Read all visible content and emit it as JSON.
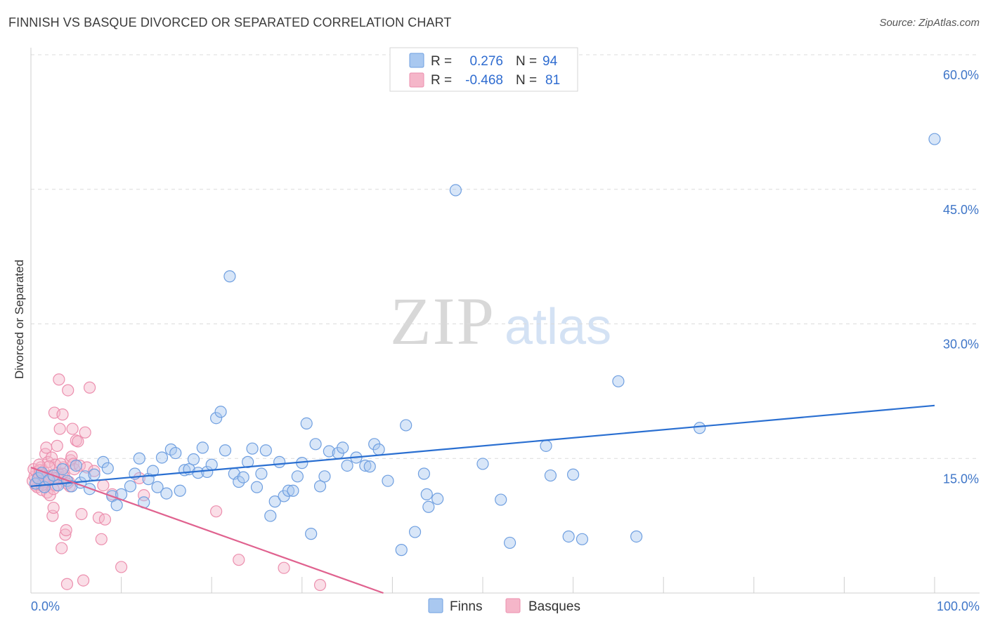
{
  "title": "FINNISH VS BASQUE DIVORCED OR SEPARATED CORRELATION CHART",
  "source": "Source: ZipAtlas.com",
  "watermark": {
    "zip": "ZIP",
    "atlas": "atlas"
  },
  "colors": {
    "finns_fill": "#a9c8f0",
    "finns_stroke": "#6f9fe0",
    "finns_line": "#2a6fd1",
    "basques_fill": "#f5b6c9",
    "basques_stroke": "#ec8fae",
    "basques_line": "#e0628f",
    "axis_text": "#3f76c8",
    "grid": "#dcdcdc"
  },
  "legend": {
    "rows": [
      {
        "r_label": "R =",
        "r_value": "0.276",
        "n_label": "N =",
        "n_value": "94"
      },
      {
        "r_label": "R =",
        "r_value": "-0.468",
        "n_label": "N =",
        "n_value": "81"
      }
    ]
  },
  "chart_data": {
    "type": "scatter",
    "title": "FINNISH VS BASQUE DIVORCED OR SEPARATED CORRELATION CHART",
    "xlabel": "",
    "ylabel": "Divorced or Separated",
    "xlim": [
      0,
      100
    ],
    "ylim": [
      0,
      60
    ],
    "x_tick_labels": [
      "0.0%",
      "100.0%"
    ],
    "y_ticks": [
      15,
      30,
      45,
      60
    ],
    "y_tick_labels": [
      "15.0%",
      "30.0%",
      "45.0%",
      "60.0%"
    ],
    "legend_position": "bottom-center",
    "series": [
      {
        "name": "Finns",
        "r": 0.276,
        "n": 94,
        "trend": {
          "x": [
            0,
            100
          ],
          "y": [
            11.9,
            20.9
          ]
        },
        "points": [
          [
            0.5,
            12.2
          ],
          [
            0.8,
            12.8
          ],
          [
            1.2,
            13.4
          ],
          [
            1.5,
            11.8
          ],
          [
            2,
            12.6
          ],
          [
            2.5,
            13.1
          ],
          [
            3,
            12.0
          ],
          [
            3.5,
            13.8
          ],
          [
            4,
            12.5
          ],
          [
            4.5,
            11.9
          ],
          [
            5,
            14.2
          ],
          [
            5.5,
            12.3
          ],
          [
            6,
            13.0
          ],
          [
            6.5,
            11.6
          ],
          [
            7,
            13.2
          ],
          [
            8,
            14.6
          ],
          [
            8.5,
            13.9
          ],
          [
            9,
            10.8
          ],
          [
            9.5,
            9.8
          ],
          [
            10,
            11.0
          ],
          [
            11,
            11.9
          ],
          [
            11.5,
            13.3
          ],
          [
            12,
            15.0
          ],
          [
            12.5,
            10.1
          ],
          [
            13,
            12.7
          ],
          [
            13.5,
            13.6
          ],
          [
            14,
            11.8
          ],
          [
            14.5,
            15.1
          ],
          [
            15,
            11.1
          ],
          [
            15.5,
            16.0
          ],
          [
            16,
            15.6
          ],
          [
            16.5,
            11.4
          ],
          [
            17,
            13.7
          ],
          [
            17.5,
            13.8
          ],
          [
            18,
            14.9
          ],
          [
            18.5,
            13.4
          ],
          [
            19,
            16.2
          ],
          [
            19.5,
            13.5
          ],
          [
            20,
            14.3
          ],
          [
            20.5,
            19.5
          ],
          [
            21,
            20.2
          ],
          [
            21.5,
            15.9
          ],
          [
            22,
            35.3
          ],
          [
            22.5,
            13.3
          ],
          [
            23,
            12.4
          ],
          [
            23.5,
            12.9
          ],
          [
            24,
            14.6
          ],
          [
            24.5,
            16.1
          ],
          [
            25,
            11.8
          ],
          [
            25.5,
            13.3
          ],
          [
            26,
            15.9
          ],
          [
            26.5,
            8.6
          ],
          [
            27,
            10.2
          ],
          [
            27.5,
            14.6
          ],
          [
            28,
            10.8
          ],
          [
            28.5,
            11.4
          ],
          [
            29,
            11.4
          ],
          [
            29.5,
            13.0
          ],
          [
            30,
            14.5
          ],
          [
            30.5,
            18.9
          ],
          [
            31,
            6.6
          ],
          [
            31.5,
            16.6
          ],
          [
            32,
            11.9
          ],
          [
            32.5,
            13.0
          ],
          [
            33,
            15.8
          ],
          [
            34,
            15.6
          ],
          [
            34.5,
            16.2
          ],
          [
            35,
            14.2
          ],
          [
            36,
            15.1
          ],
          [
            37,
            14.2
          ],
          [
            37.5,
            14.1
          ],
          [
            38,
            16.6
          ],
          [
            38.5,
            16.0
          ],
          [
            39.5,
            12.5
          ],
          [
            41,
            4.8
          ],
          [
            41.5,
            18.7
          ],
          [
            42.5,
            6.8
          ],
          [
            43.5,
            13.3
          ],
          [
            43.8,
            11.0
          ],
          [
            44,
            9.6
          ],
          [
            45,
            10.5
          ],
          [
            47,
            44.9
          ],
          [
            50,
            14.4
          ],
          [
            52,
            10.4
          ],
          [
            53,
            5.6
          ],
          [
            57,
            16.4
          ],
          [
            57.5,
            13.1
          ],
          [
            59.5,
            6.3
          ],
          [
            61,
            6.0
          ],
          [
            65,
            23.6
          ],
          [
            67,
            6.3
          ],
          [
            74,
            18.4
          ],
          [
            100,
            50.6
          ],
          [
            60,
            13.2
          ]
        ]
      },
      {
        "name": "Basques",
        "r": -0.468,
        "n": 81,
        "trend": {
          "x": [
            0,
            39
          ],
          "y": [
            14.0,
            0
          ]
        },
        "points": [
          [
            0.2,
            12.5
          ],
          [
            0.4,
            13.0
          ],
          [
            0.5,
            12.0
          ],
          [
            0.6,
            13.5
          ],
          [
            0.7,
            11.8
          ],
          [
            0.8,
            12.8
          ],
          [
            0.9,
            13.2
          ],
          [
            1.0,
            12.3
          ],
          [
            1.1,
            14.0
          ],
          [
            1.2,
            11.5
          ],
          [
            1.3,
            12.9
          ],
          [
            1.4,
            13.6
          ],
          [
            1.5,
            12.1
          ],
          [
            1.6,
            15.5
          ],
          [
            1.7,
            16.2
          ],
          [
            1.8,
            11.2
          ],
          [
            1.9,
            14.6
          ],
          [
            2.0,
            12.6
          ],
          [
            2.1,
            10.9
          ],
          [
            2.2,
            13.1
          ],
          [
            2.3,
            15.1
          ],
          [
            2.4,
            8.6
          ],
          [
            2.5,
            9.5
          ],
          [
            2.6,
            20.1
          ],
          [
            2.7,
            14.3
          ],
          [
            2.8,
            12.0
          ],
          [
            2.9,
            16.4
          ],
          [
            3.0,
            13.4
          ],
          [
            3.1,
            23.8
          ],
          [
            3.2,
            18.3
          ],
          [
            3.3,
            12.7
          ],
          [
            3.4,
            5.0
          ],
          [
            3.5,
            19.9
          ],
          [
            3.6,
            14.0
          ],
          [
            3.7,
            13.0
          ],
          [
            3.8,
            6.5
          ],
          [
            3.9,
            7.0
          ],
          [
            4.0,
            1.0
          ],
          [
            4.1,
            22.6
          ],
          [
            4.2,
            12.4
          ],
          [
            4.3,
            11.9
          ],
          [
            4.4,
            14.8
          ],
          [
            4.5,
            15.2
          ],
          [
            4.6,
            18.3
          ],
          [
            4.7,
            14.4
          ],
          [
            4.8,
            13.8
          ],
          [
            5.0,
            17.0
          ],
          [
            5.2,
            16.9
          ],
          [
            5.4,
            14.2
          ],
          [
            5.6,
            8.8
          ],
          [
            5.8,
            1.4
          ],
          [
            6.0,
            17.9
          ],
          [
            6.2,
            14.0
          ],
          [
            6.5,
            22.9
          ],
          [
            7.0,
            13.6
          ],
          [
            7.5,
            8.4
          ],
          [
            7.8,
            6.0
          ],
          [
            8.0,
            12.0
          ],
          [
            8.2,
            8.2
          ],
          [
            9.0,
            11.0
          ],
          [
            10.0,
            2.9
          ],
          [
            12.0,
            12.8
          ],
          [
            12.5,
            10.9
          ],
          [
            20.5,
            9.1
          ],
          [
            23.0,
            3.7
          ],
          [
            28.0,
            2.8
          ],
          [
            32.0,
            0.9
          ],
          [
            0.3,
            13.8
          ],
          [
            0.6,
            12.2
          ],
          [
            1.0,
            13.7
          ],
          [
            1.5,
            12.4
          ],
          [
            2.0,
            14.1
          ],
          [
            2.5,
            11.6
          ],
          [
            3.0,
            12.9
          ],
          [
            3.5,
            13.3
          ],
          [
            4.0,
            12.2
          ],
          [
            1.2,
            12.0
          ],
          [
            0.9,
            14.3
          ],
          [
            1.8,
            13.0
          ],
          [
            2.6,
            12.8
          ],
          [
            3.3,
            14.4
          ]
        ]
      }
    ]
  },
  "bottom_legend": {
    "items": [
      "Finns",
      "Basques"
    ]
  }
}
